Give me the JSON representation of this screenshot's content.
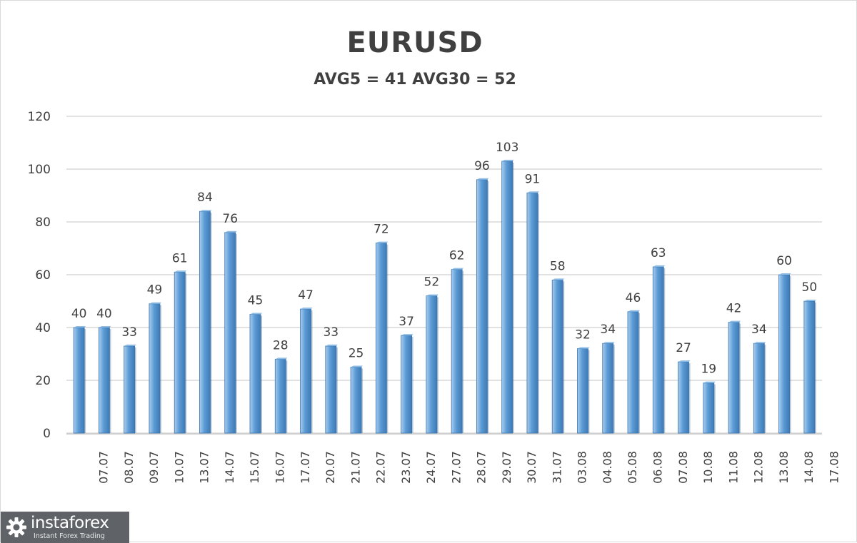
{
  "chart_data": {
    "type": "bar",
    "title": "EURUSD",
    "subtitle": "AVG5 = 41 AVG30 = 52",
    "categories": [
      "07.07",
      "08.07",
      "09.07",
      "10.07",
      "13.07",
      "14.07",
      "15.07",
      "16.07",
      "17.07",
      "20.07",
      "21.07",
      "22.07",
      "23.07",
      "24.07",
      "27.07",
      "28.07",
      "29.07",
      "30.07",
      "31.07",
      "03.08",
      "04.08",
      "05.08",
      "06.08",
      "07.08",
      "10.08",
      "11.08",
      "12.08",
      "13.08",
      "14.08",
      "17.08"
    ],
    "values": [
      40,
      40,
      33,
      49,
      61,
      84,
      76,
      45,
      28,
      47,
      33,
      25,
      72,
      37,
      52,
      62,
      96,
      103,
      91,
      58,
      32,
      34,
      46,
      63,
      27,
      19,
      42,
      34,
      60,
      50
    ],
    "ylim": [
      0,
      120
    ],
    "yticks": [
      0,
      20,
      40,
      60,
      80,
      100,
      120
    ],
    "grid": true,
    "data_labels": true,
    "colors": {
      "bar_fill": "#5b9bd5",
      "bar_light": "#a9cdef",
      "bar_dark": "#3f7ab5",
      "grid": "#d9d9d9",
      "text": "#404040"
    }
  },
  "watermark": {
    "name": "instaforex",
    "tagline": "Instant Forex Trading",
    "icon": "gear-logo-icon"
  }
}
